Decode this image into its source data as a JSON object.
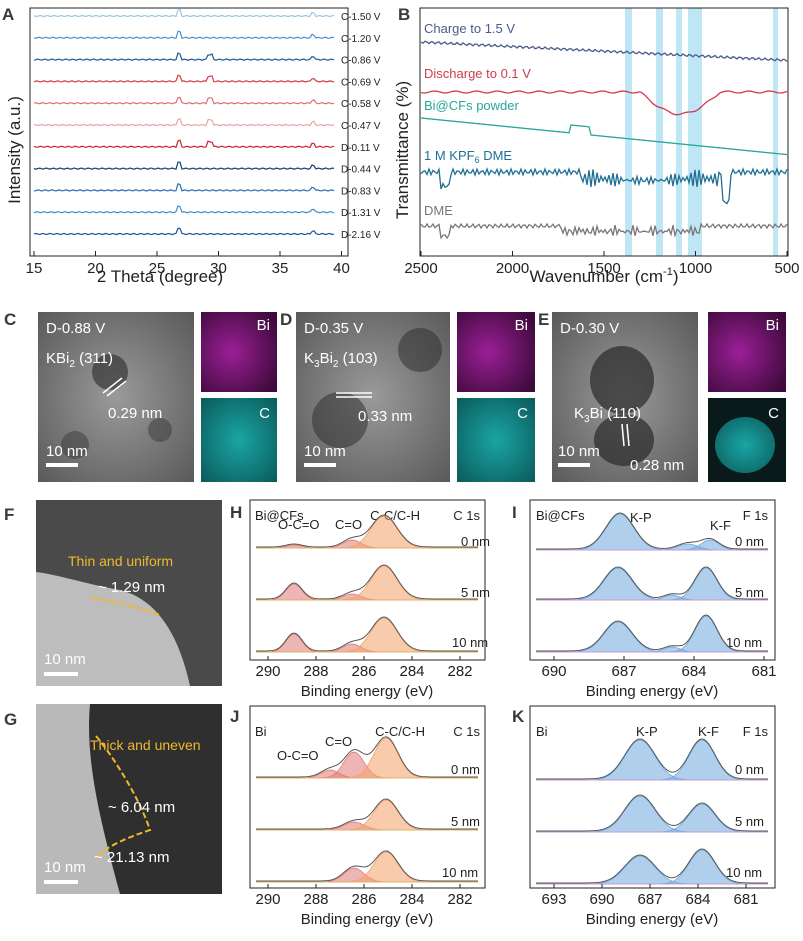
{
  "panels": {
    "A": {
      "label": "A",
      "xlabel": "2 Theta (degree)",
      "ylabel": "Intensity (a.u.)",
      "xticks": [
        "15",
        "20",
        "25",
        "30",
        "35",
        "40"
      ],
      "traces": [
        {
          "label": "C-1.50 V",
          "color": "#9dc6e0"
        },
        {
          "label": "C-1.20 V",
          "color": "#4f90c6"
        },
        {
          "label": "C-0.86 V",
          "color": "#1f5b99"
        },
        {
          "label": "C-0.69 V",
          "color": "#d73a49"
        },
        {
          "label": "C-0.58 V",
          "color": "#e26a72"
        },
        {
          "label": "C-0.47 V",
          "color": "#eda4a8"
        },
        {
          "label": "D-0.11 V",
          "color": "#cc2233"
        },
        {
          "label": "D-0.44 V",
          "color": "#143f73"
        },
        {
          "label": "D-0.83 V",
          "color": "#2a6faf"
        },
        {
          "label": "D-1.31 V",
          "color": "#3f8fc9"
        },
        {
          "label": "D-2.16 V",
          "color": "#1d5496"
        }
      ]
    },
    "B": {
      "label": "B",
      "xlabel_main": "Wavenumber (cm",
      "xlabel_sup": "-1",
      "xlabel_end": ")",
      "ylabel": "Transmittance (%)",
      "xticks": [
        "2500",
        "2000",
        "1500",
        "1000",
        "500"
      ],
      "traces": [
        {
          "label": "Charge to 1.5 V",
          "color": "#4a5a8a"
        },
        {
          "label": "Discharge to 0.1 V",
          "color": "#d23a4a"
        },
        {
          "label": "Bi@CFs powder",
          "color": "#27a79a"
        },
        {
          "label_main": "1 M KPF",
          "label_sub": "6",
          "label_end": " DME",
          "color": "#1f6f93"
        },
        {
          "label": "DME",
          "color": "#777777"
        }
      ]
    },
    "C": {
      "label": "C",
      "title": "D-0.88 V",
      "phase_main": "KBi",
      "phase_sub": "2",
      "phase_end": " (311)",
      "d": "0.29 nm",
      "scale": "10 nm",
      "map1": "Bi",
      "map2": "C"
    },
    "D": {
      "label": "D",
      "title": "D-0.35 V",
      "phase_a": "K",
      "phase_sub1": "3",
      "phase_b": "Bi",
      "phase_sub2": "2",
      "phase_end": " (103)",
      "d": "0.33 nm",
      "scale": "10 nm",
      "map1": "Bi",
      "map2": "C"
    },
    "E": {
      "label": "E",
      "title": "D-0.30 V",
      "phase_a": "K",
      "phase_sub1": "3",
      "phase_b": "Bi (110)",
      "d": "0.28 nm",
      "scale": "10 nm",
      "map1": "Bi",
      "map2": "C"
    },
    "F": {
      "label": "F",
      "note": "Thin and uniform",
      "thickness": "~ 1.29 nm",
      "scale": "10 nm"
    },
    "G": {
      "label": "G",
      "note": "Thick and uneven",
      "t1": "~ 6.04 nm",
      "t2": "~ 21.13 nm",
      "scale": "10 nm"
    },
    "H": {
      "label": "H",
      "sample": "Bi@CFs",
      "region": "C 1s",
      "peaks": [
        "O-C=O",
        "C=O",
        "C-C/C-H"
      ],
      "depths": [
        "0 nm",
        "5 nm",
        "10 nm"
      ],
      "xticks": [
        "290",
        "288",
        "286",
        "284",
        "282"
      ],
      "xlabel": "Binding energy (eV)"
    },
    "I": {
      "label": "I",
      "sample": "Bi@CFs",
      "region": "F 1s",
      "peaks": [
        "K-P",
        "K-F"
      ],
      "depths": [
        "0 nm",
        "5 nm",
        "10 nm"
      ],
      "xticks": [
        "690",
        "687",
        "684",
        "681"
      ],
      "xlabel": "Binding energy (eV)"
    },
    "J": {
      "label": "J",
      "sample": "Bi",
      "region": "C 1s",
      "peaks": [
        "O-C=O",
        "C=O",
        "C-C/C-H"
      ],
      "depths": [
        "0 nm",
        "5 nm",
        "10 nm"
      ],
      "xticks": [
        "290",
        "288",
        "286",
        "284",
        "282"
      ],
      "xlabel": "Binding energy (eV)"
    },
    "K": {
      "label": "K",
      "sample": "Bi",
      "region": "F 1s",
      "peaks": [
        "K-P",
        "K-F"
      ],
      "depths": [
        "0 nm",
        "5 nm",
        "10 nm"
      ],
      "xticks": [
        "693",
        "690",
        "687",
        "684",
        "681"
      ],
      "xlabel": "Binding energy (eV)"
    }
  },
  "colors": {
    "tem_dark": "#3c3c3c",
    "bi_map": "#7a1a78",
    "c_map": "#138c8c",
    "ftir_band": "#bfe6f5",
    "c1s_fill": "#f4a06a",
    "c1s_fill2": "#e07878",
    "f1s_fill": "#6fa8dc",
    "baseline": "#e0b060",
    "dash": "#f0b830"
  }
}
